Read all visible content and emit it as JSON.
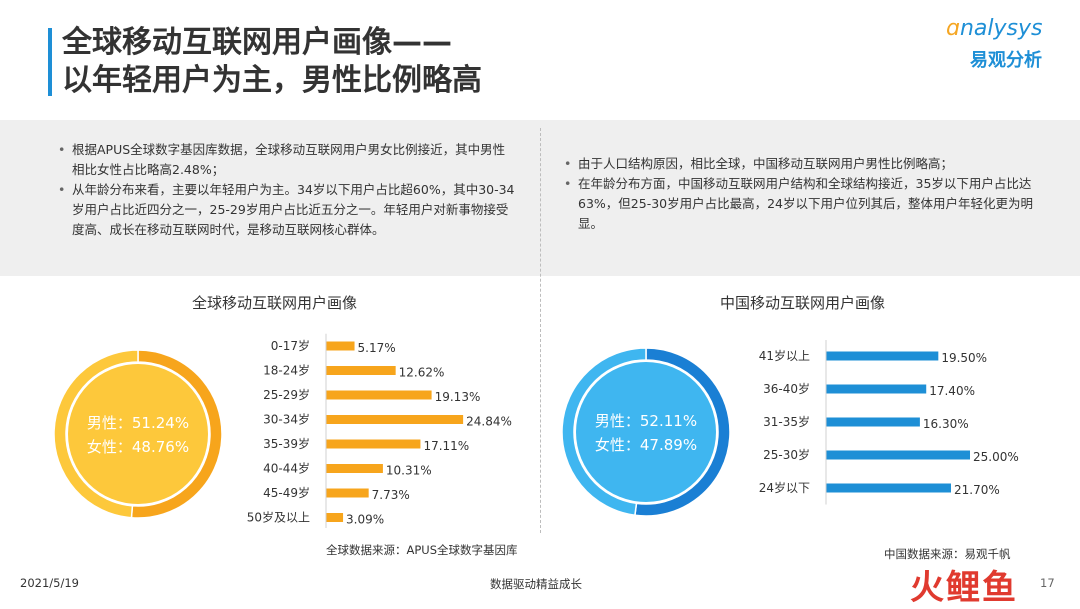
{
  "page": {
    "title_line1": "全球移动互联网用户画像——",
    "title_line2": "以年轻用户为主，男性比例略高",
    "logo_en": "nalysys",
    "logo_cn": "易观分析",
    "footer_date": "2021/5/19",
    "footer_slogan": "数据驱动精益成长",
    "footer_page": "17",
    "watermark": "火鲤鱼"
  },
  "notes_left": [
    "根据APUS全球数字基因库数据，全球移动互联网用户男女比例接近，其中男性相比女性占比略高2.48%；",
    "从年龄分布来看，主要以年轻用户为主。34岁以下用户占比超60%，其中30-34岁用户占比近四分之一，25-29岁用户占比近五分之一。年轻用户对新事物接受度高、成长在移动互联网时代，是移动互联网核心群体。"
  ],
  "notes_right": [
    "由于人口结构原因，相比全球，中国移动互联网用户男性比例略高；",
    "在年龄分布方面，中国移动互联网用户结构和全球结构接近，35岁以下用户占比达63%，但25-30岁用户占比最高，24岁以下用户位列其后，整体用户年轻化更为明显。"
  ],
  "sources": {
    "left": "全球数据来源：APUS全球数字基因库",
    "right": "中国数据来源：易观千帆"
  },
  "chart_data": [
    {
      "type": "pie",
      "title": "全球移动互联网用户画像",
      "categories": [
        "男性",
        "女性"
      ],
      "values": [
        51.24,
        48.76
      ],
      "labels": [
        "男性：51.24%",
        "女性：48.76%"
      ],
      "colors": [
        "#f7a51c",
        "#fdc83b"
      ]
    },
    {
      "type": "bar",
      "orientation": "horizontal",
      "title": "全球移动互联网用户画像",
      "categories": [
        "0-17岁",
        "18-24岁",
        "25-29岁",
        "30-34岁",
        "35-39岁",
        "40-44岁",
        "45-49岁",
        "50岁及以上"
      ],
      "values": [
        5.17,
        12.62,
        19.13,
        24.84,
        17.11,
        10.31,
        7.73,
        3.09
      ],
      "value_labels": [
        "5.17%",
        "12.62%",
        "19.13%",
        "24.84%",
        "17.11%",
        "10.31%",
        "7.73%",
        "3.09%"
      ],
      "color": "#f7a51c"
    },
    {
      "type": "pie",
      "title": "中国移动互联网用户画像",
      "categories": [
        "男性",
        "女性"
      ],
      "values": [
        52.11,
        47.89
      ],
      "labels": [
        "男性：52.11%",
        "女性：47.89%"
      ],
      "colors": [
        "#1a7fd4",
        "#3fb6f0"
      ]
    },
    {
      "type": "bar",
      "orientation": "horizontal",
      "title": "中国移动互联网用户画像",
      "categories": [
        "41岁以上",
        "36-40岁",
        "31-35岁",
        "25-30岁",
        "24岁以下"
      ],
      "values": [
        19.5,
        17.4,
        16.3,
        25.0,
        21.7
      ],
      "value_labels": [
        "19.50%",
        "17.40%",
        "16.30%",
        "25.00%",
        "21.70%"
      ],
      "color": "#1e8fd6"
    }
  ]
}
